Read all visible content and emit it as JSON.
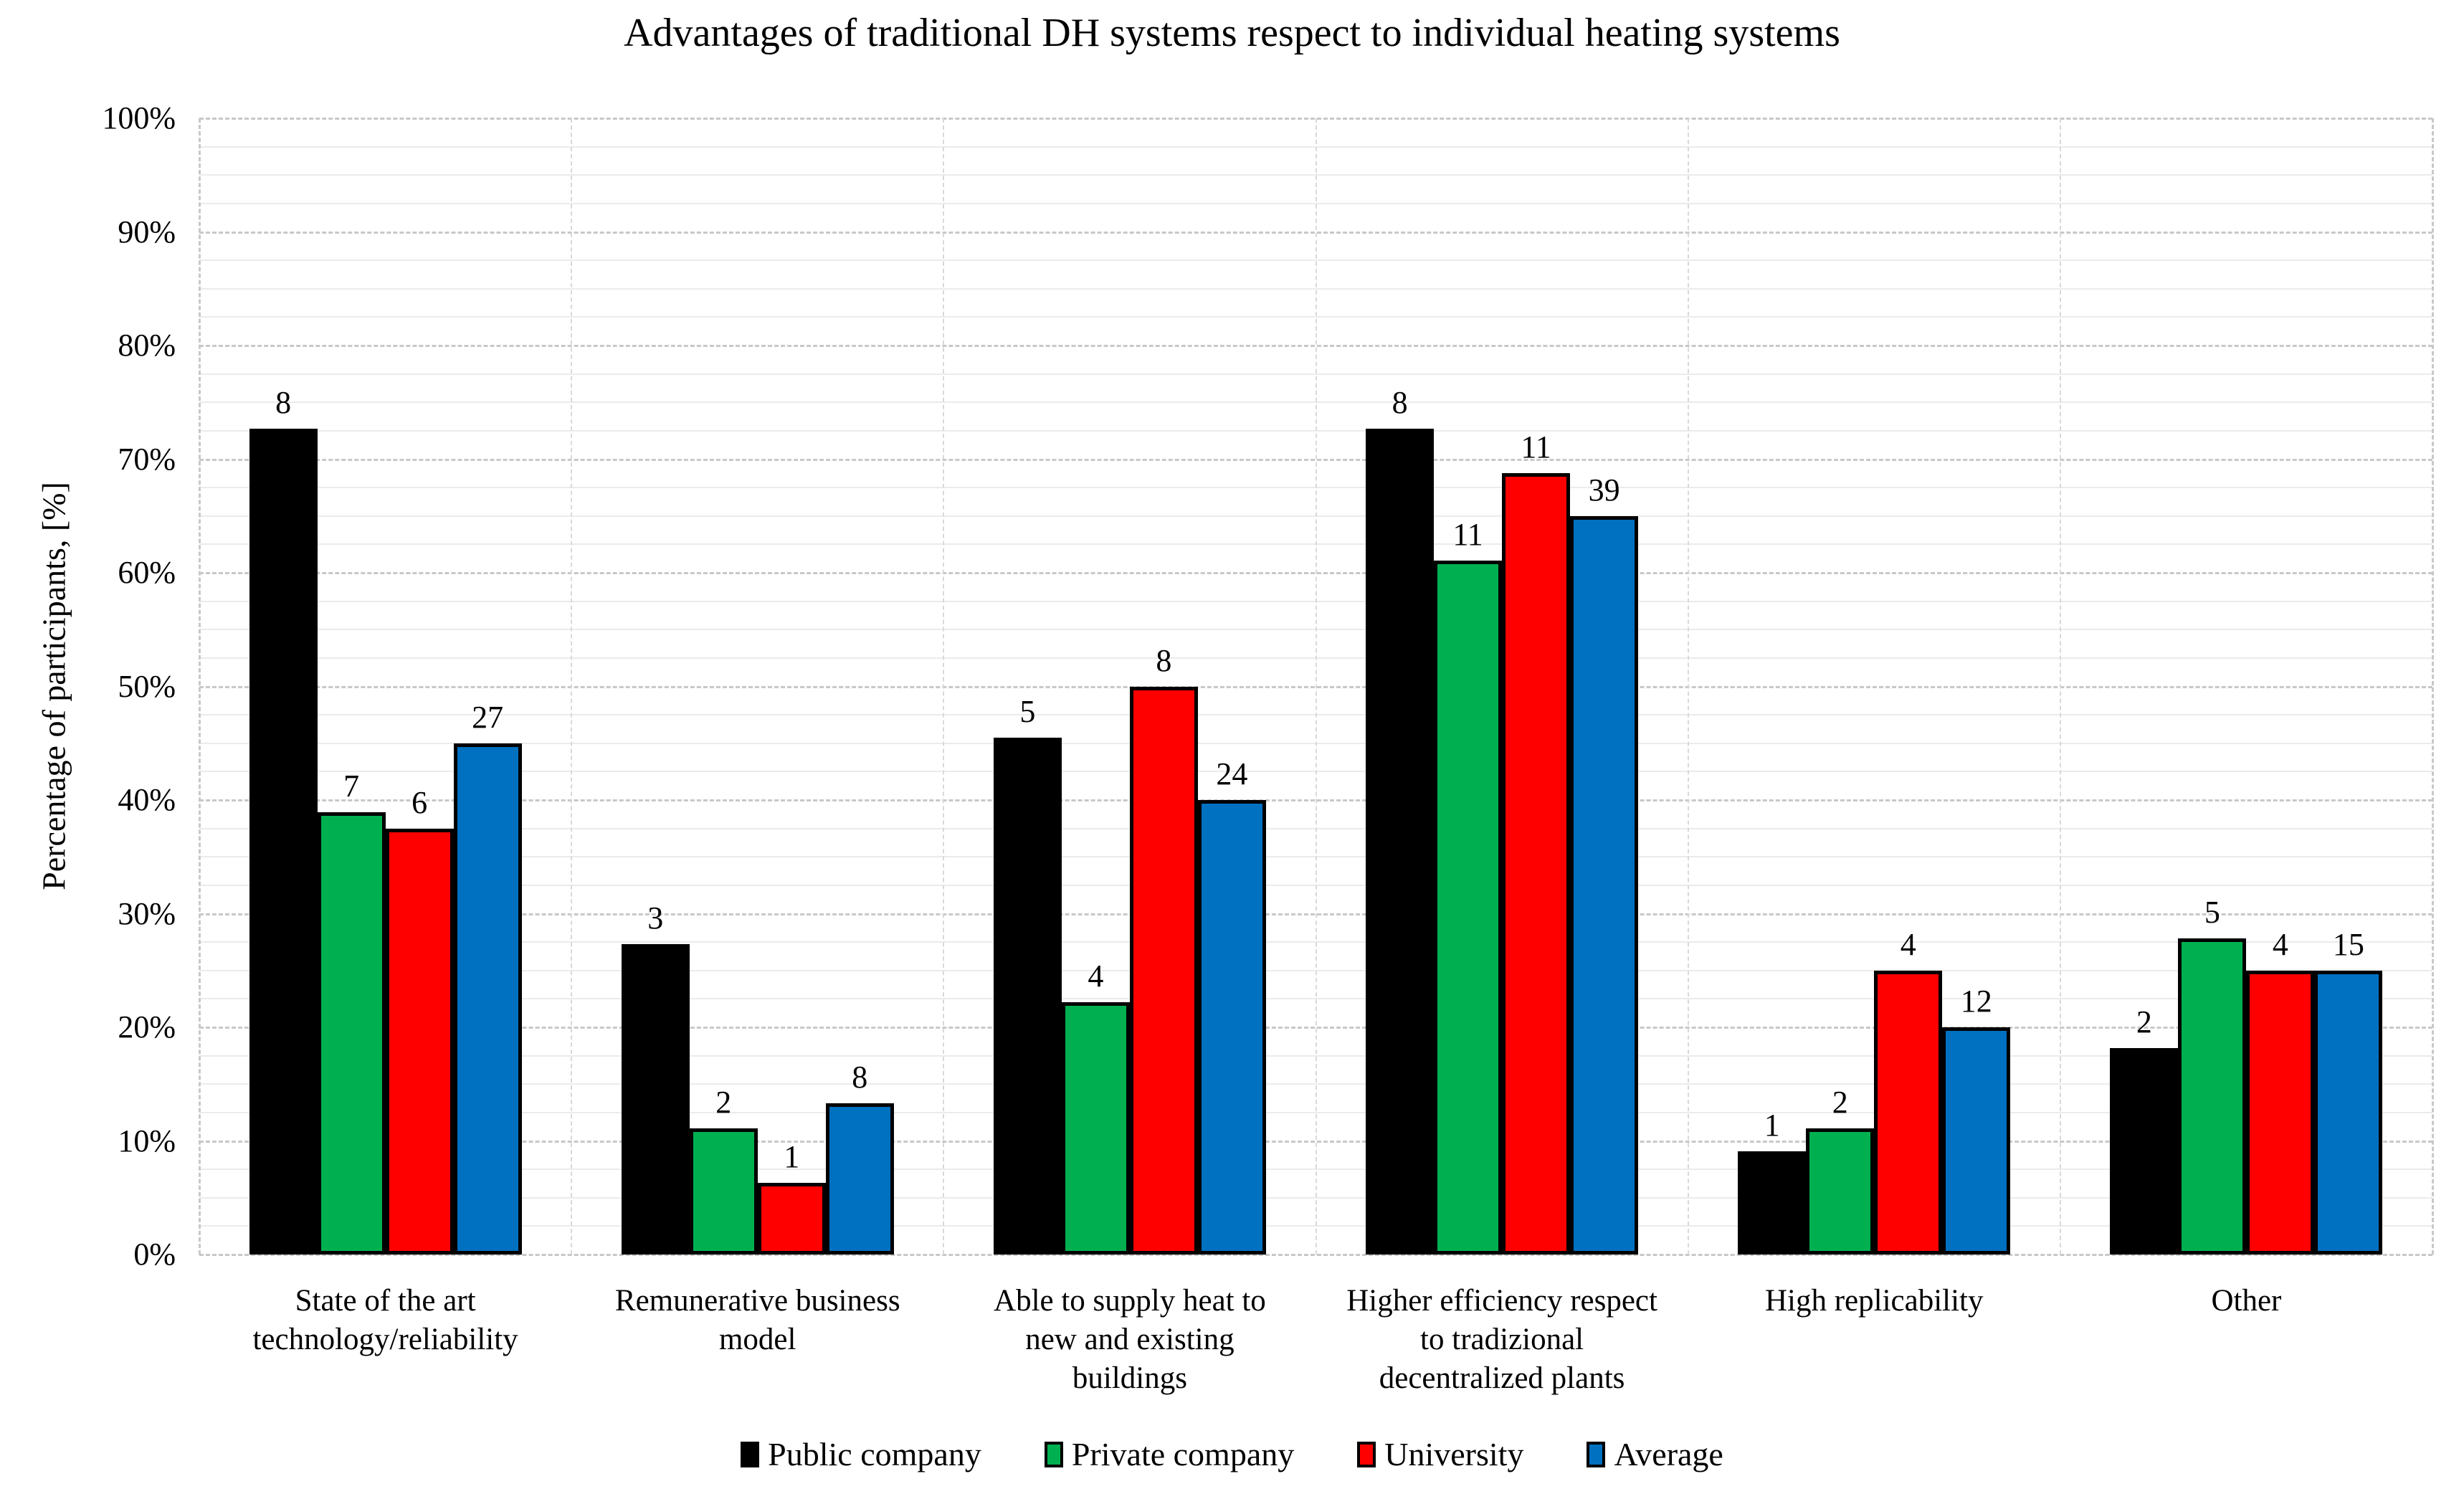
{
  "chart_data": {
    "type": "bar",
    "title": "Advantages of traditional DH systems respect to individual heating systems",
    "xlabel": "",
    "ylabel": "Percentage of participants, [%]",
    "ylim": [
      0,
      100
    ],
    "y_tick_labels": [
      "0%",
      "10%",
      "20%",
      "30%",
      "40%",
      "50%",
      "60%",
      "70%",
      "80%",
      "90%",
      "100%"
    ],
    "major_gridline_unit_pct": 10,
    "minor_gridline_unit_pct": 2.5,
    "grid": "on",
    "legend_position": "bottom",
    "categories": [
      "State of the art\ntechnology/reliability",
      "Remunerative business\nmodel",
      "Able to supply heat to\nnew and existing\nbuildings",
      "Higher efficiency respect\nto tradizional\ndecentralized plants",
      "High replicability",
      "Other"
    ],
    "series": [
      {
        "name": "Public company",
        "color": "#000000",
        "values_pct": [
          72.7,
          27.3,
          45.5,
          72.7,
          9.1,
          18.2
        ],
        "count_labels": [
          "8",
          "3",
          "5",
          "8",
          "1",
          "2"
        ]
      },
      {
        "name": "Private company",
        "color": "#00B050",
        "values_pct": [
          38.9,
          11.1,
          22.2,
          61.1,
          11.1,
          27.8
        ],
        "count_labels": [
          "7",
          "2",
          "4",
          "11",
          "2",
          "5"
        ]
      },
      {
        "name": "University",
        "color": "#FF0000",
        "values_pct": [
          37.5,
          6.3,
          50.0,
          68.8,
          25.0,
          25.0
        ],
        "count_labels": [
          "6",
          "1",
          "8",
          "11",
          "4",
          "4"
        ]
      },
      {
        "name": "Average",
        "color": "#0070C0",
        "values_pct": [
          45.0,
          13.3,
          40.0,
          65.0,
          20.0,
          25.0
        ],
        "count_labels": [
          "27",
          "8",
          "24",
          "39",
          "12",
          "15"
        ]
      }
    ]
  },
  "colors": {
    "background": "#FFFFFF",
    "bar_border": "#000000",
    "major_gridline": "#C8C8C8",
    "minor_gridline": "#EBEBEB",
    "text": "#000000"
  }
}
